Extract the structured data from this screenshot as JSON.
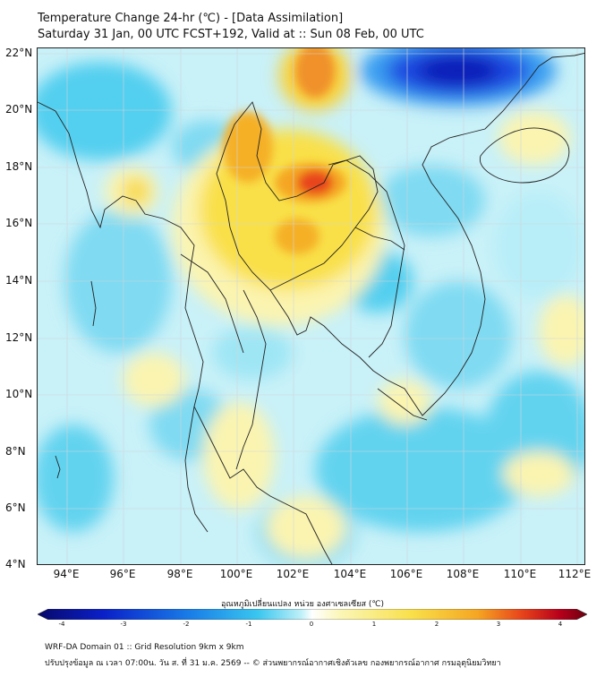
{
  "header": {
    "title_line1": "Temperature Change 24-hr (℃) - [Data Assimilation]",
    "title_line2": "Saturday 31 Jan, 00 UTC FCST+192, Valid at :: Sun 08 Feb, 00 UTC"
  },
  "axes": {
    "lat_ticks": [
      "22°N",
      "20°N",
      "18°N",
      "16°N",
      "14°N",
      "12°N",
      "10°N",
      "8°N",
      "6°N",
      "4°N"
    ],
    "lon_ticks": [
      "94°E",
      "96°E",
      "98°E",
      "100°E",
      "102°E",
      "104°E",
      "106°E",
      "108°E",
      "110°E",
      "112°E"
    ]
  },
  "colorbar": {
    "label": "อุณหภูมิเปลี่ยนแปลง หน่วย องศาเซลเซียส (℃)",
    "ticks": [
      "-4",
      "-3",
      "-2",
      "-1",
      "0",
      "1",
      "2",
      "3",
      "4"
    ],
    "colors": [
      "#08086b",
      "#0a20c8",
      "#1a7fe8",
      "#39c6ef",
      "#bff0f8",
      "#ffffff",
      "#fbf6b8",
      "#f9e04a",
      "#f5a623",
      "#e8451b",
      "#b7001b",
      "#6b0010"
    ]
  },
  "footer": {
    "line1": "WRF-DA Domain 01 :: Grid Resolution 9km x 9km",
    "line2": "ปรับปรุงข้อมูล ณ เวลา 07:00น. วัน ส. ที่ 31 ม.ค. 2569 -- © ส่วนพยากรณ์อากาศเชิงตัวเลข กองพยากรณ์อากาศ กรมอุตุนิยมวิทยา"
  }
}
